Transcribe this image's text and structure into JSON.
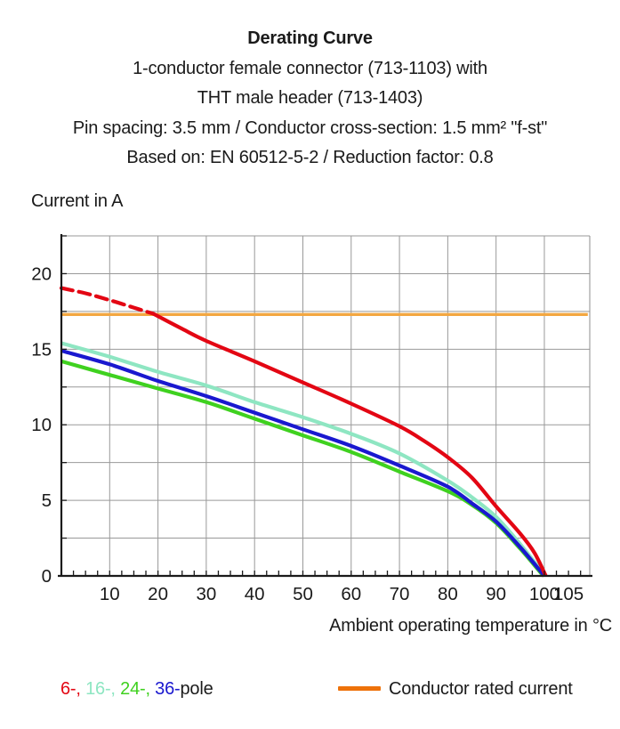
{
  "figure": {
    "background": "#ffffff"
  },
  "header": {
    "title": "Derating Curve",
    "lines": [
      "1-conductor female connector (713-1103) with",
      "THT male header (713-1403)",
      "Pin spacing: 3.5 mm / Conductor cross-section: 1.5 mm² \"f-st\"",
      "Based on: EN 60512-5-2 / Reduction factor: 0.8"
    ]
  },
  "legend": {
    "pole_entries": [
      {
        "id": "6-pole",
        "label": "6-, ",
        "color": "#e30613"
      },
      {
        "id": "16-pole",
        "label": "16-, ",
        "color": "#8ee6c2"
      },
      {
        "id": "24-pole",
        "label": "24-, ",
        "color": "#3fd11f"
      },
      {
        "id": "36-pole",
        "label": "36-",
        "color": "#1a18cf"
      }
    ],
    "pole_suffix": "pole",
    "rated_label": "Conductor rated current",
    "rated_swatch_color": "#ee720a"
  },
  "chart_data": {
    "type": "line",
    "title": "Derating Curve",
    "xlabel": "Ambient operating temperature in °C",
    "ylabel": "Current in A",
    "xlim": [
      0,
      109.4
    ],
    "ylim": [
      0,
      22.5
    ],
    "x_ticks": [
      10,
      20,
      30,
      40,
      50,
      60,
      70,
      80,
      90,
      100,
      105
    ],
    "y_ticks": [
      0,
      5,
      10,
      15,
      20
    ],
    "x_minor_tick_step": 2.5,
    "y_minor_tick_step": 2.5,
    "grid": {
      "x_step": 10,
      "y_step": 2.5,
      "color": "#999999",
      "frame_color": "#8c8c8c"
    },
    "axis_color": "#1a1a1a",
    "legend_position": "bottom",
    "series": [
      {
        "id": "conductor-rated-current",
        "name": "Conductor rated current",
        "color": "#f3a741",
        "width": 3.4,
        "points": [
          [
            0,
            17.3
          ],
          [
            109,
            17.3
          ]
        ]
      },
      {
        "id": "24-pole",
        "name": "24-pole",
        "color": "#3fd11f",
        "width": 4.2,
        "points": [
          [
            0,
            14.2
          ],
          [
            10,
            13.3
          ],
          [
            20,
            12.4
          ],
          [
            30,
            11.5
          ],
          [
            40,
            10.4
          ],
          [
            50,
            9.3
          ],
          [
            60,
            8.2
          ],
          [
            70,
            6.9
          ],
          [
            80,
            5.6
          ],
          [
            85,
            4.7
          ],
          [
            90,
            3.5
          ],
          [
            95,
            1.8
          ],
          [
            99.8,
            0
          ]
        ]
      },
      {
        "id": "16-pole",
        "name": "16-pole",
        "color": "#8ee6c2",
        "width": 4.2,
        "points": [
          [
            0,
            15.4
          ],
          [
            10,
            14.5
          ],
          [
            20,
            13.5
          ],
          [
            30,
            12.6
          ],
          [
            40,
            11.5
          ],
          [
            50,
            10.5
          ],
          [
            60,
            9.4
          ],
          [
            70,
            8.1
          ],
          [
            80,
            6.3
          ],
          [
            85,
            5.2
          ],
          [
            90,
            3.9
          ],
          [
            95,
            2.1
          ],
          [
            100.2,
            0
          ]
        ]
      },
      {
        "id": "36-pole",
        "name": "36-pole",
        "color": "#1a18cf",
        "width": 4.2,
        "points": [
          [
            0,
            14.9
          ],
          [
            10,
            14.0
          ],
          [
            20,
            12.9
          ],
          [
            30,
            11.9
          ],
          [
            40,
            10.8
          ],
          [
            50,
            9.7
          ],
          [
            60,
            8.6
          ],
          [
            70,
            7.3
          ],
          [
            80,
            5.9
          ],
          [
            85,
            4.8
          ],
          [
            90,
            3.6
          ],
          [
            95,
            1.9
          ],
          [
            100,
            0
          ]
        ]
      },
      {
        "id": "6-pole",
        "name": "6-pole",
        "color": "#e30613",
        "width": 4.2,
        "dash_pattern": "13 7",
        "dashed_points": [
          [
            0,
            19.05
          ],
          [
            5,
            18.7
          ],
          [
            10,
            18.25
          ],
          [
            15,
            17.75
          ],
          [
            19,
            17.35
          ]
        ],
        "points": [
          [
            19,
            17.35
          ],
          [
            25,
            16.35
          ],
          [
            30,
            15.55
          ],
          [
            40,
            14.2
          ],
          [
            50,
            12.8
          ],
          [
            60,
            11.4
          ],
          [
            70,
            9.9
          ],
          [
            75,
            8.95
          ],
          [
            80,
            7.85
          ],
          [
            85,
            6.5
          ],
          [
            90,
            4.6
          ],
          [
            95,
            2.8
          ],
          [
            98,
            1.5
          ],
          [
            100.3,
            0
          ]
        ]
      }
    ]
  }
}
